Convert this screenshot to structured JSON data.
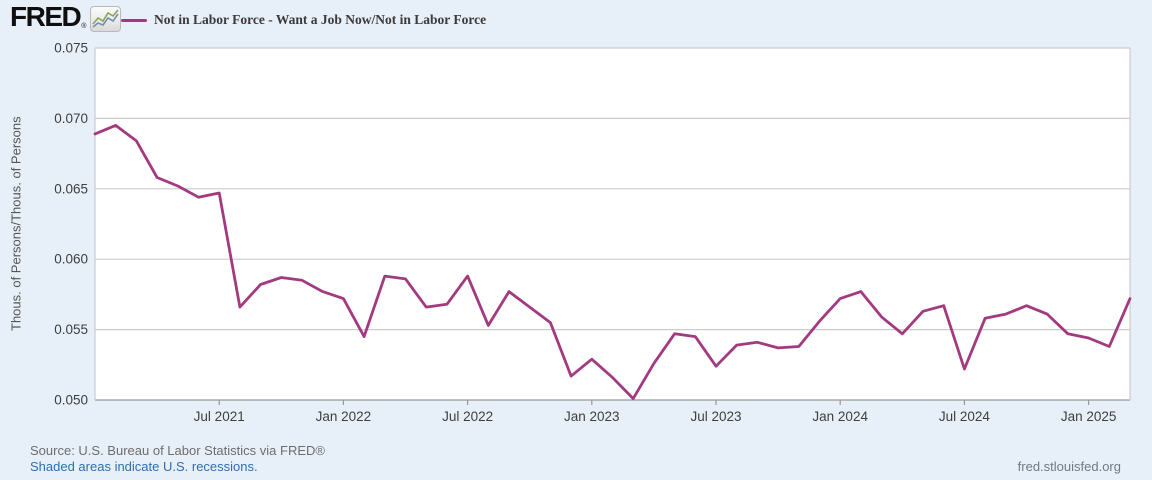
{
  "header": {
    "logo_text": "FRED",
    "logo_registered": "®",
    "legend_label": "Not in Labor Force - Want a Job Now/Not in Labor Force"
  },
  "y_axis_title": "Thous. of Persons/Thous. of Persons",
  "footer": {
    "source": "Source: U.S. Bureau of Labor Statistics via FRED®",
    "recession_note": "Shaded areas indicate U.S. recessions.",
    "site": "fred.stlouisfed.org"
  },
  "colors": {
    "line": "#a33a80",
    "page_bg": "#e7eff8",
    "plot_bg": "#ffffff",
    "gridline": "#cccccc",
    "axis": "#999999",
    "tick_text": "#3f3f3f",
    "link_blue": "#2f6eb0",
    "source_gray": "#6e6e6e"
  },
  "chart_data": {
    "type": "line",
    "series_name": "Not in Labor Force - Want a Job Now/Not in Labor Force",
    "frequency": "monthly",
    "ylabel": "Thous. of Persons/Thous. of Persons",
    "ylim": [
      0.05,
      0.075
    ],
    "grid": "horizontal",
    "legend_position": "top",
    "x": [
      "2021-01",
      "2021-02",
      "2021-03",
      "2021-04",
      "2021-05",
      "2021-06",
      "2021-07",
      "2021-08",
      "2021-09",
      "2021-10",
      "2021-11",
      "2021-12",
      "2022-01",
      "2022-02",
      "2022-03",
      "2022-04",
      "2022-05",
      "2022-06",
      "2022-07",
      "2022-08",
      "2022-09",
      "2022-10",
      "2022-11",
      "2022-12",
      "2023-01",
      "2023-02",
      "2023-03",
      "2023-04",
      "2023-05",
      "2023-06",
      "2023-07",
      "2023-08",
      "2023-09",
      "2023-10",
      "2023-11",
      "2023-12",
      "2024-01",
      "2024-02",
      "2024-03",
      "2024-04",
      "2024-05",
      "2024-06",
      "2024-07",
      "2024-08",
      "2024-09",
      "2024-10",
      "2024-11",
      "2024-12",
      "2025-01",
      "2025-02",
      "2025-03"
    ],
    "values": [
      0.0689,
      0.0695,
      0.0684,
      0.0658,
      0.0652,
      0.0644,
      0.0647,
      0.0566,
      0.0582,
      0.0587,
      0.0585,
      0.0577,
      0.0572,
      0.0545,
      0.0588,
      0.0586,
      0.0566,
      0.0568,
      0.0588,
      0.0553,
      0.0577,
      0.0566,
      0.0555,
      0.0517,
      0.0529,
      0.0516,
      0.0501,
      0.0526,
      0.0547,
      0.0545,
      0.0524,
      0.0539,
      0.0541,
      0.0537,
      0.0538,
      0.0556,
      0.0572,
      0.0577,
      0.0559,
      0.0547,
      0.0563,
      0.0567,
      0.0522,
      0.0558,
      0.0561,
      0.0567,
      0.0561,
      0.0547,
      0.0544,
      0.0538,
      0.0572
    ],
    "yticks": {
      "values": [
        0.075,
        0.07,
        0.065,
        0.06,
        0.055,
        0.05
      ],
      "labels": [
        "0.075",
        "0.070",
        "0.065",
        "0.060",
        "0.055",
        "0.050"
      ]
    },
    "xticks": [
      {
        "index": 6,
        "label": "Jul 2021"
      },
      {
        "index": 12,
        "label": "Jan 2022"
      },
      {
        "index": 18,
        "label": "Jul 2022"
      },
      {
        "index": 24,
        "label": "Jan 2023"
      },
      {
        "index": 30,
        "label": "Jul 2023"
      },
      {
        "index": 36,
        "label": "Jan 2024"
      },
      {
        "index": 42,
        "label": "Jul 2024"
      },
      {
        "index": 48,
        "label": "Jan 2025"
      }
    ]
  }
}
